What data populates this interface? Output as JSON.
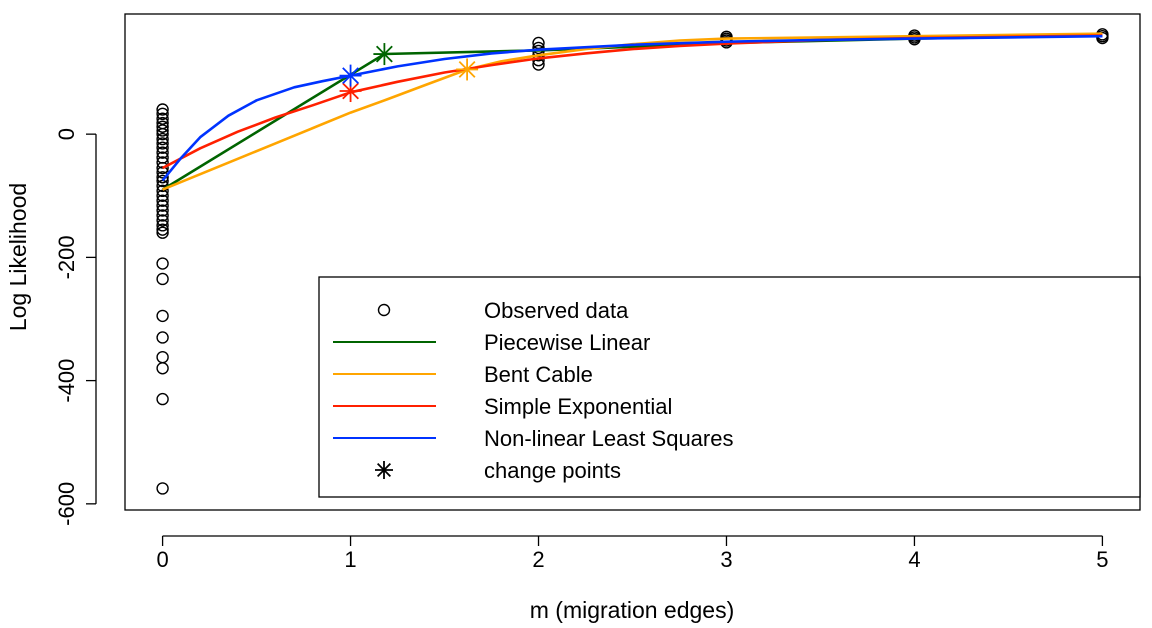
{
  "chart_data": {
    "type": "scatter",
    "title": "",
    "xlabel": "m (migration edges)",
    "ylabel": "Log Likelihood",
    "xlim": [
      -0.2,
      5.2
    ],
    "ylim": [
      -610,
      195
    ],
    "x_ticks": [
      0,
      1,
      2,
      3,
      4,
      5
    ],
    "y_ticks": [
      -600,
      -400,
      -200,
      0
    ],
    "grid": false,
    "legend_position": "bottom-right",
    "observed": {
      "name": "Observed data",
      "points": [
        [
          0,
          40
        ],
        [
          0,
          33
        ],
        [
          0,
          25
        ],
        [
          0,
          18
        ],
        [
          0,
          12
        ],
        [
          0,
          6
        ],
        [
          0,
          0
        ],
        [
          0,
          -8
        ],
        [
          0,
          -15
        ],
        [
          0,
          -22
        ],
        [
          0,
          -30
        ],
        [
          0,
          -38
        ],
        [
          0,
          -46
        ],
        [
          0,
          -55
        ],
        [
          0,
          -62
        ],
        [
          0,
          -70
        ],
        [
          0,
          -76
        ],
        [
          0,
          -84
        ],
        [
          0,
          -92
        ],
        [
          0,
          -100
        ],
        [
          0,
          -108
        ],
        [
          0,
          -116
        ],
        [
          0,
          -124
        ],
        [
          0,
          -132
        ],
        [
          0,
          -140
        ],
        [
          0,
          -148
        ],
        [
          0,
          -155
        ],
        [
          0,
          -160
        ],
        [
          0,
          -210
        ],
        [
          0,
          -235
        ],
        [
          0,
          -295
        ],
        [
          0,
          -330
        ],
        [
          0,
          -362
        ],
        [
          0,
          -380
        ],
        [
          0,
          -430
        ],
        [
          0,
          -575
        ],
        [
          2,
          148
        ],
        [
          2,
          140
        ],
        [
          2,
          135
        ],
        [
          2,
          128
        ],
        [
          2,
          120
        ],
        [
          2,
          113
        ],
        [
          3,
          158
        ],
        [
          3,
          155
        ],
        [
          3,
          152
        ],
        [
          3,
          149
        ],
        [
          4,
          160
        ],
        [
          4,
          157
        ],
        [
          4,
          154
        ],
        [
          5,
          162
        ],
        [
          5,
          159
        ],
        [
          5,
          156
        ]
      ]
    },
    "series": [
      {
        "name": "Piecewise Linear",
        "color": "#006400",
        "x": [
          0,
          1.18,
          2,
          3,
          4,
          5
        ],
        "y": [
          -90,
          130,
          136,
          148,
          155,
          160
        ],
        "change_point": [
          1.18,
          130
        ]
      },
      {
        "name": "Bent Cable",
        "color": "#FFA500",
        "x": [
          0,
          0.2,
          0.4,
          0.6,
          0.8,
          1.0,
          1.2,
          1.4,
          1.62,
          1.8,
          2.0,
          2.25,
          2.5,
          2.75,
          3.0,
          3.5,
          4.0,
          4.5,
          5.0
        ],
        "y": [
          -90,
          -65,
          -40,
          -15,
          10,
          35,
          57,
          80,
          105,
          118,
          128,
          138,
          146,
          152,
          155,
          157,
          159,
          161,
          163
        ],
        "change_point": [
          1.62,
          105
        ]
      },
      {
        "name": "Simple Exponential",
        "color": "#FF2000",
        "x": [
          0,
          0.2,
          0.4,
          0.6,
          0.8,
          1.0,
          1.25,
          1.5,
          1.75,
          2.0,
          2.25,
          2.5,
          2.75,
          3.0,
          3.5,
          4.0,
          4.5,
          5.0
        ],
        "y": [
          -55,
          -23,
          4,
          27,
          47,
          68,
          85,
          100,
          112,
          123,
          131,
          138,
          143,
          147,
          153,
          156,
          158,
          160
        ],
        "change_point": [
          1.0,
          70
        ]
      },
      {
        "name": "Non-linear Least Squares",
        "color": "#0033FF",
        "x": [
          0,
          0.1,
          0.2,
          0.35,
          0.5,
          0.7,
          0.85,
          1.0,
          1.25,
          1.5,
          1.75,
          2.0,
          2.5,
          3.0,
          3.5,
          4.0,
          4.5,
          5.0
        ],
        "y": [
          -75,
          -38,
          -5,
          30,
          55,
          76,
          86,
          95,
          110,
          122,
          131,
          137,
          145,
          150,
          153,
          155,
          157,
          159
        ],
        "change_point": [
          1.0,
          95
        ]
      }
    ],
    "legend": [
      {
        "label": "Observed data",
        "kind": "circle",
        "color": "#000000"
      },
      {
        "label": "Piecewise Linear",
        "kind": "line",
        "color": "#006400"
      },
      {
        "label": "Bent Cable",
        "kind": "line",
        "color": "#FFA500"
      },
      {
        "label": "Simple Exponential",
        "kind": "line",
        "color": "#FF2000"
      },
      {
        "label": "Non-linear Least Squares",
        "kind": "line",
        "color": "#0033FF"
      },
      {
        "label": "change points",
        "kind": "star",
        "color": "#000000"
      }
    ]
  }
}
